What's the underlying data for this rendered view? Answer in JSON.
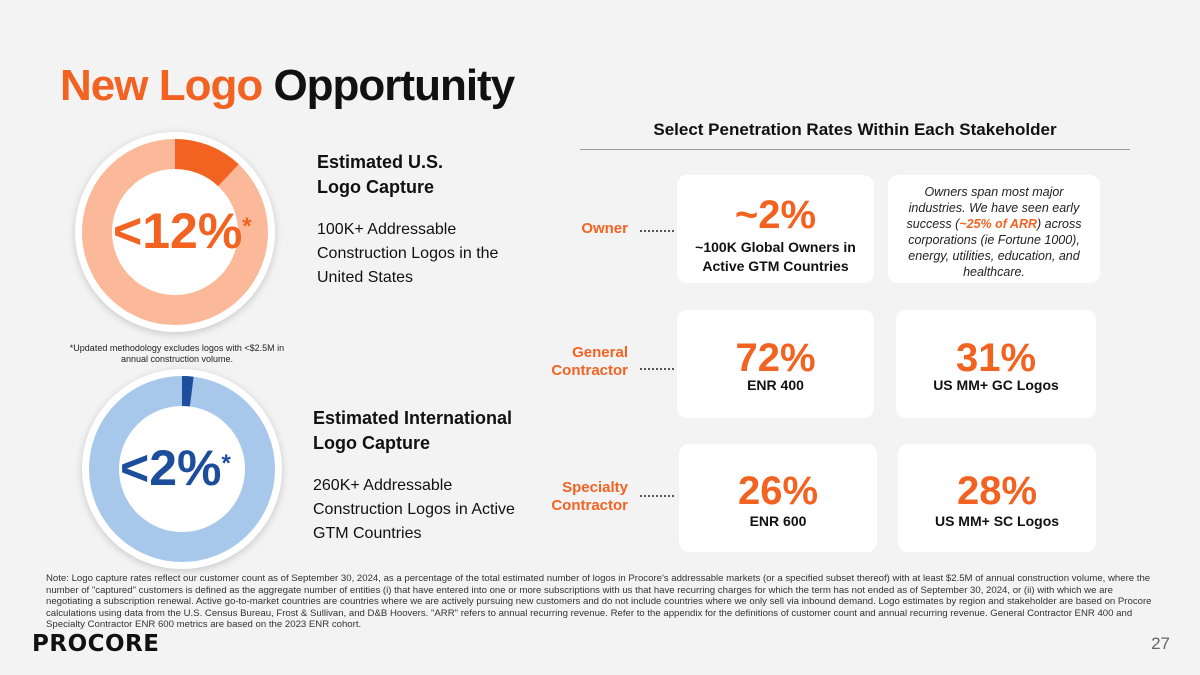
{
  "title": {
    "highlight": "New Logo",
    "rest": "Opportunity"
  },
  "section_header": "Select Penetration Rates Within Each Stakeholder",
  "us_capture": {
    "percent_label": "<12%",
    "asterisk": "*",
    "share_percent": 12,
    "title_line1": "Estimated U.S.",
    "title_line2": "Logo Capture",
    "description": "100K+ Addressable Construction Logos in the United States",
    "footnote": "*Updated methodology excludes logos with <$2.5M in annual construction volume.",
    "colors": {
      "fill": "#f26322",
      "track": "#fbb99a",
      "text": "#f26322"
    }
  },
  "intl_capture": {
    "percent_label": "<2%",
    "asterisk": "*",
    "share_percent": 2,
    "title_line1": "Estimated International",
    "title_line2": "Logo Capture",
    "description": "260K+ Addressable Construction Logos in Active GTM Countries",
    "colors": {
      "fill": "#1c4e9c",
      "track": "#a7c8ea",
      "text": "#1c4e9c"
    }
  },
  "stakeholders": {
    "owner": {
      "label": "Owner",
      "stat": "~2%",
      "stat_label": "~100K Global Owners in Active GTM Countries",
      "desc_pre": "Owners span most major industries. We have seen early success (",
      "desc_em": "~25% of ARR",
      "desc_post": ") across corporations (ie Fortune 1000), energy, utilities, education, and healthcare."
    },
    "gc": {
      "label_line1": "General",
      "label_line2": "Contractor",
      "stat1": "72%",
      "stat1_label": "ENR 400",
      "stat2": "31%",
      "stat2_label": "US MM+ GC Logos"
    },
    "sc": {
      "label_line1": "Specialty",
      "label_line2": "Contractor",
      "stat1": "26%",
      "stat1_label": "ENR 600",
      "stat2": "28%",
      "stat2_label": "US MM+ SC Logos"
    }
  },
  "note": "Note: Logo capture rates reflect our customer count as of September 30, 2024, as a percentage of the total estimated number of logos in Procore's addressable markets (or a specified subset thereof) with at least $2.5M of annual construction volume, where the number of \"captured\" customers is defined as the aggregate number of entities (i) that have entered into one or more subscriptions with us that have recurring charges for which the term has not ended as of September 30, 2024, or (ii) with which we are negotiating a subscription renewal. Active go-to-market countries are countries where we are actively pursuing new customers and do not include countries where we only sell via inbound demand. Logo estimates by region and stakeholder are based on Procore calculations using data from the U.S. Census Bureau, Frost & Sullivan, and D&B Hoovers. \"ARR\" refers to annual recurring revenue. Refer to the appendix for the definitions of customer count and annual recurring revenue. General Contractor ENR 400 and Specialty Contractor ENR 600 metrics are based on the 2023 ENR cohort.",
  "footer": {
    "logo": "PROCORE",
    "page_number": "27"
  },
  "accent_color": "#f26322"
}
